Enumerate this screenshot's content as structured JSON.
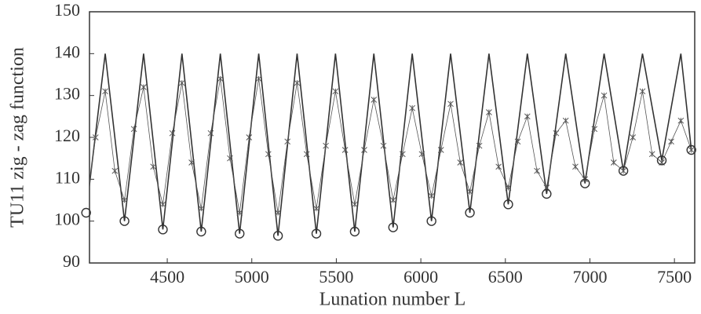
{
  "chart_data": {
    "type": "line",
    "xlabel": "Lunation number L",
    "ylabel": "TU11 zig - zag function",
    "xlim": [
      4040,
      7620
    ],
    "ylim": [
      90,
      150
    ],
    "xticks": [
      4500,
      5000,
      5500,
      6000,
      6500,
      7000,
      7500
    ],
    "yticks": [
      90,
      100,
      110,
      120,
      130,
      140,
      150
    ],
    "series": [
      {
        "kind": "line",
        "color": "#333333",
        "x": [
          4020,
          4133,
          4247,
          4360,
          4474,
          4587,
          4701,
          4814,
          4928,
          5041,
          5155,
          5268,
          5382,
          5495,
          5609,
          5722,
          5836,
          5949,
          6063,
          6176,
          6290,
          6403,
          6517,
          6630,
          6744,
          6857,
          6971,
          7084,
          7198,
          7311,
          7425,
          7538,
          7600
        ],
        "values": [
          102,
          140,
          100,
          140,
          98,
          140,
          97.5,
          140,
          97,
          140,
          96.5,
          140,
          97,
          140,
          97.5,
          140,
          98.5,
          140,
          100,
          140,
          102,
          140,
          104,
          140,
          106.5,
          140,
          109,
          140,
          112,
          140,
          114.5,
          140,
          117
        ]
      },
      {
        "kind": "asterisk",
        "color": "#555555",
        "x": [
          4020,
          4076,
          4133,
          4190,
          4247,
          4303,
          4360,
          4417,
          4474,
          4530,
          4587,
          4644,
          4701,
          4757,
          4814,
          4871,
          4928,
          4984,
          5041,
          5098,
          5155,
          5211,
          5268,
          5325,
          5382,
          5438,
          5495,
          5552,
          5609,
          5665,
          5722,
          5779,
          5836,
          5892,
          5949,
          6006,
          6063,
          6119,
          6176,
          6233,
          6290,
          6346,
          6403,
          6460,
          6517,
          6573,
          6630,
          6687,
          6744,
          6800,
          6857,
          6914,
          6971,
          7027,
          7084,
          7141,
          7198,
          7254,
          7311,
          7368,
          7425,
          7481,
          7538,
          7600
        ],
        "values": [
          103,
          120,
          131,
          112,
          105,
          122,
          132,
          113,
          104,
          121,
          133,
          114,
          103,
          121,
          134,
          115,
          102,
          120,
          134,
          116,
          102,
          119,
          133,
          116,
          103,
          118,
          131,
          117,
          104,
          117,
          129,
          118,
          105,
          116,
          127,
          116,
          106,
          117,
          128,
          114,
          107,
          118,
          126,
          113,
          108,
          119,
          125,
          112,
          108,
          121,
          124,
          113,
          110,
          122,
          130,
          114,
          112,
          120,
          131,
          116,
          114,
          119,
          124,
          117
        ]
      },
      {
        "kind": "circle",
        "color": "#333333",
        "x": [
          4020,
          4247,
          4474,
          4701,
          4928,
          5155,
          5382,
          5609,
          5836,
          6063,
          6290,
          6517,
          6744,
          6971,
          7198,
          7425,
          7600
        ],
        "values": [
          102,
          100,
          98,
          97.5,
          97,
          96.5,
          97,
          97.5,
          98.5,
          100,
          102,
          104,
          106.5,
          109,
          112,
          114.5,
          117
        ]
      }
    ]
  }
}
